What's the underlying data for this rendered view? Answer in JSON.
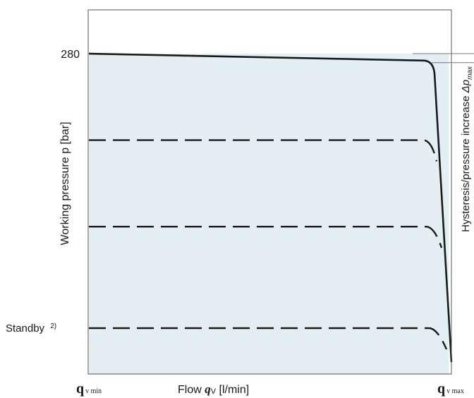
{
  "chart_data": {
    "type": "line",
    "title": "",
    "xlabel_prefix": "Flow ",
    "xlabel_symbol": "q",
    "xlabel_sub": "V",
    "xlabel_unit": " [l/min]",
    "ylabel": "Working pressure p [bar]",
    "right_label_text": "Hysteresis/pressure increase ",
    "right_label_symbol": "Δp",
    "right_label_sub": "max",
    "x_tick_min_main": "q",
    "x_tick_min_sub": "v min",
    "x_tick_max_main": "q",
    "x_tick_max_sub": "v max",
    "y_tick_280": "280",
    "y_tick_standby": "Standby",
    "y_tick_standby_note": "2)",
    "x_range": [
      0,
      1
    ],
    "y_range": [
      0,
      330
    ],
    "grid": false,
    "colors": {
      "fill": "#e4eff3",
      "line": "#1a1a1a",
      "frame": "#555555"
    },
    "series": [
      {
        "style": "solid",
        "y_start": 280,
        "y_end": 274
      },
      {
        "style": "dashed",
        "y_start": 205,
        "y_end": 205
      },
      {
        "style": "dashed",
        "y_start": 130,
        "y_end": 130
      },
      {
        "style": "dashed",
        "y_start": 42,
        "y_end": 42
      }
    ],
    "hysteresis_y": [
      280,
      274
    ]
  }
}
